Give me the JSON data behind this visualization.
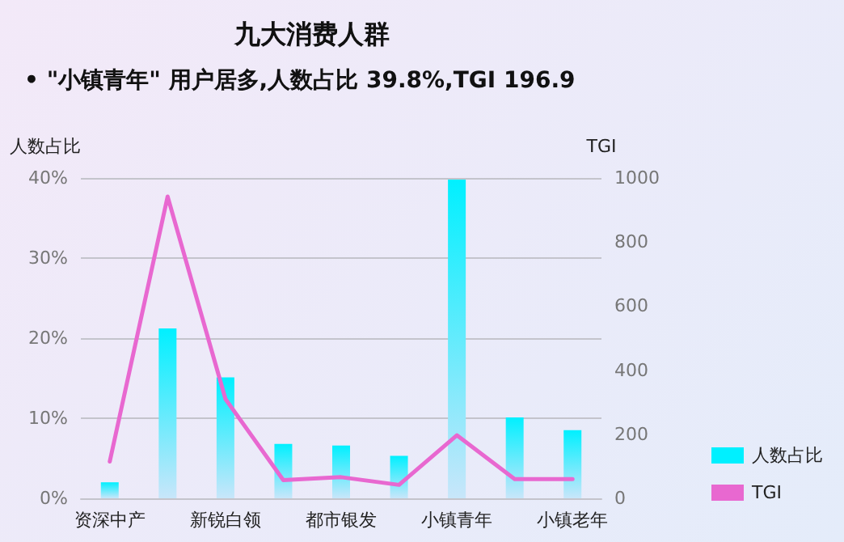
{
  "chart_data": {
    "type": "bar",
    "title": "九大消费人群",
    "subtitle": "• \"小镇青年\" 用户居多,人数占比 39.8%,TGI 196.9",
    "ylabel": "人数占比",
    "y2label": "TGI",
    "categories": [
      "资深中产",
      null,
      "新锐白领",
      null,
      "都市银发",
      null,
      "小镇青年",
      null,
      "小镇老年"
    ],
    "series": [
      {
        "name": "人数占比",
        "color": "#00f0ff",
        "values": [
          2.0,
          21.2,
          15.1,
          6.8,
          6.6,
          5.3,
          39.8,
          10.1,
          8.5
        ]
      },
      {
        "name": "TGI",
        "type": "line",
        "axis": "y2",
        "color": "#e868d0",
        "marker": "none",
        "values": [
          115,
          942,
          310,
          57,
          66,
          42,
          196.9,
          60,
          60
        ]
      }
    ],
    "ylim": [
      0,
      40
    ],
    "yticks": [
      {
        "value": 0,
        "label": "0%"
      },
      {
        "value": 10,
        "label": "10%"
      },
      {
        "value": 20,
        "label": "20%"
      },
      {
        "value": 30,
        "label": "30%"
      },
      {
        "value": 40,
        "label": "40%"
      }
    ],
    "y2lim": [
      0,
      1000
    ],
    "y2ticks": [
      0,
      200,
      400,
      600,
      800,
      1000
    ],
    "grid": "y",
    "legend": "bottom right"
  }
}
